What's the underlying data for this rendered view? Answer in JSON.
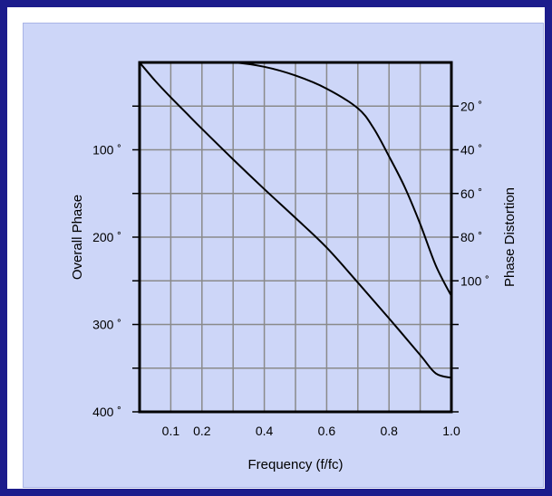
{
  "colors": {
    "outer_border": "#1c1c8c",
    "panel": "#cdd6f8",
    "grid": "#8a8a8a",
    "frame": "#000000",
    "curve": "#000000"
  },
  "chart_data": {
    "type": "line",
    "title": "",
    "xlabel": "Frequency (f/fc)",
    "ylabel_left": "Overall Phase",
    "ylabel_right": "Phase Distortion",
    "xlim": [
      0,
      1.0
    ],
    "ylim_left": [
      0,
      400
    ],
    "ylim_right": [
      0,
      160
    ],
    "grid": true,
    "x_tick_labels": [
      {
        "value": 0.1,
        "label": "0.1"
      },
      {
        "value": 0.2,
        "label": "0.2"
      },
      {
        "value": 0.4,
        "label": "0.4"
      },
      {
        "value": 0.6,
        "label": "0.6"
      },
      {
        "value": 0.8,
        "label": "0.8"
      },
      {
        "value": 1.0,
        "label": "1.0"
      }
    ],
    "y_left_tick_labels": [
      {
        "value": 100,
        "label": "100 ˚"
      },
      {
        "value": 200,
        "label": "200 ˚"
      },
      {
        "value": 300,
        "label": "300 ˚"
      },
      {
        "value": 400,
        "label": "400 ˚"
      }
    ],
    "y_right_tick_labels": [
      {
        "value": 20,
        "label": "20 ˚"
      },
      {
        "value": 40,
        "label": "40 ˚"
      },
      {
        "value": 60,
        "label": "60 ˚"
      },
      {
        "value": 80,
        "label": "80 ˚"
      },
      {
        "value": 100,
        "label": "100 ˚"
      }
    ],
    "series": [
      {
        "axis": "left",
        "x": [
          0,
          0.05,
          0.1,
          0.15,
          0.2,
          0.3,
          0.4,
          0.5,
          0.6,
          0.7,
          0.8,
          0.9,
          0.95,
          1.0
        ],
        "values": [
          0,
          21,
          40,
          58,
          76,
          111,
          145,
          178,
          212,
          252,
          293,
          335,
          356,
          361
        ]
      },
      {
        "axis": "right",
        "x": [
          0,
          0.1,
          0.2,
          0.3,
          0.4,
          0.5,
          0.6,
          0.7,
          0.75,
          0.8,
          0.85,
          0.9,
          0.95,
          1.0
        ],
        "values": [
          0,
          0,
          0,
          0,
          2,
          6,
          12,
          21,
          30,
          43,
          57,
          74,
          93,
          107
        ]
      }
    ]
  }
}
